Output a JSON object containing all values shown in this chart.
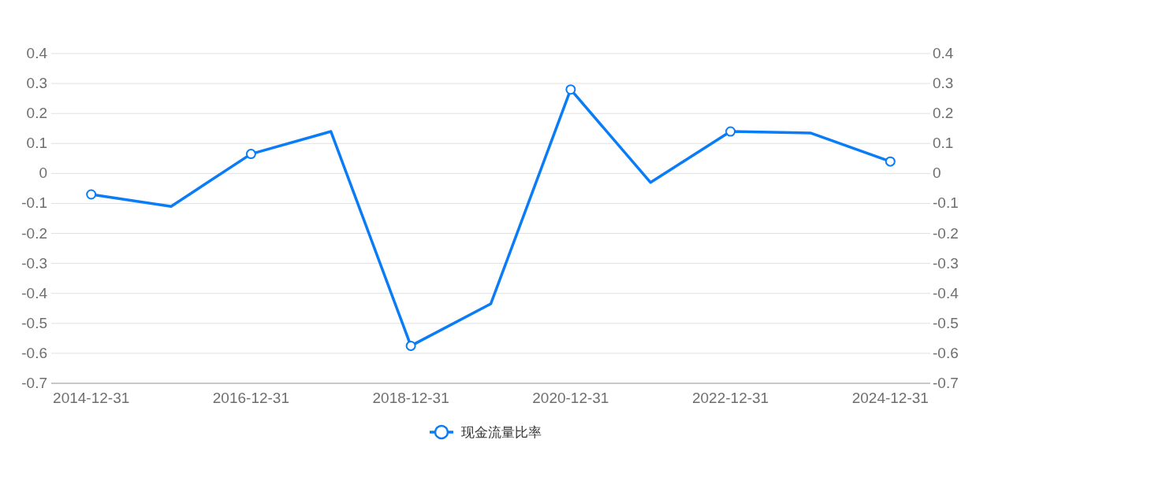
{
  "chart_data": {
    "type": "line",
    "categories": [
      "2014-12-31",
      null,
      "2016-12-31",
      null,
      "2018-12-31",
      null,
      "2020-12-31",
      null,
      "2022-12-31",
      null,
      "2024-12-31"
    ],
    "series": [
      {
        "name": "现金流量比率",
        "color": "#0a7cf5",
        "values": [
          -0.07,
          -0.11,
          0.065,
          0.14,
          -0.575,
          -0.435,
          0.28,
          -0.03,
          0.14,
          0.135,
          0.04
        ]
      }
    ],
    "ylim": [
      -0.7,
      0.4
    ],
    "yticks": [
      -0.7,
      -0.6,
      -0.5,
      -0.4,
      -0.3,
      -0.2,
      -0.1,
      0,
      0.1,
      0.2,
      0.3,
      0.4
    ],
    "y2lim": [
      -0.7,
      0.4
    ],
    "y2ticks": [
      -0.7,
      -0.6,
      -0.5,
      -0.4,
      -0.3,
      -0.2,
      -0.1,
      0,
      0.1,
      0.2,
      0.3,
      0.4
    ],
    "grid": "y",
    "legend": "bottom",
    "marker": "circle",
    "line_style": "solid"
  }
}
